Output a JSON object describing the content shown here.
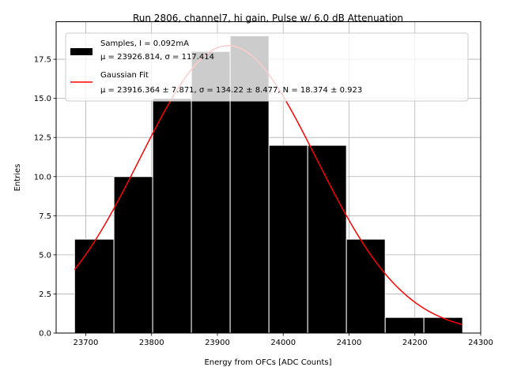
{
  "chart_data": {
    "type": "bar",
    "title": "Run 2806, channel7, hi gain, Pulse w/ 6.0 dB Attenuation",
    "xlabel": "Energy from OFCs [ADC Counts]",
    "ylabel": "Entries",
    "xlim": [
      23655,
      24300
    ],
    "ylim": [
      0,
      19.9
    ],
    "grid": true,
    "legend_position": "top",
    "xticks": [
      23700,
      23800,
      23900,
      24000,
      24100,
      24200,
      24300
    ],
    "yticks": [
      0.0,
      2.5,
      5.0,
      7.5,
      10.0,
      12.5,
      15.0,
      17.5
    ],
    "xtick_labels": [
      "23700",
      "23800",
      "23900",
      "24000",
      "24100",
      "24200",
      "24300"
    ],
    "ytick_labels": [
      "0.0",
      "2.5",
      "5.0",
      "7.5",
      "10.0",
      "12.5",
      "15.0",
      "17.5"
    ],
    "histogram": {
      "bin_edges": [
        23683,
        23742.8,
        23801.7,
        23860.5,
        23919.4,
        23978.3,
        24037.2,
        24096.0,
        24154.9,
        24213.7,
        24272.6
      ],
      "counts": [
        6,
        10,
        15,
        18,
        19,
        12,
        12,
        6,
        1,
        1
      ],
      "color": "#000000"
    },
    "fit": {
      "mu": 23916.364,
      "sigma": 134.22,
      "N": 18.374,
      "x_range": [
        23683,
        24272
      ],
      "color": "#ff0000"
    },
    "legend": {
      "samples_line1": "Samples, I = 0.092mA",
      "samples_line2": "μ = 23926.814, σ = 117.414",
      "fit_line1": "Gaussian Fit",
      "fit_line2": "μ = 23916.364 ± 7.871, σ = 134.22 ± 8.477, N = 18.374 ± 0.923"
    }
  }
}
